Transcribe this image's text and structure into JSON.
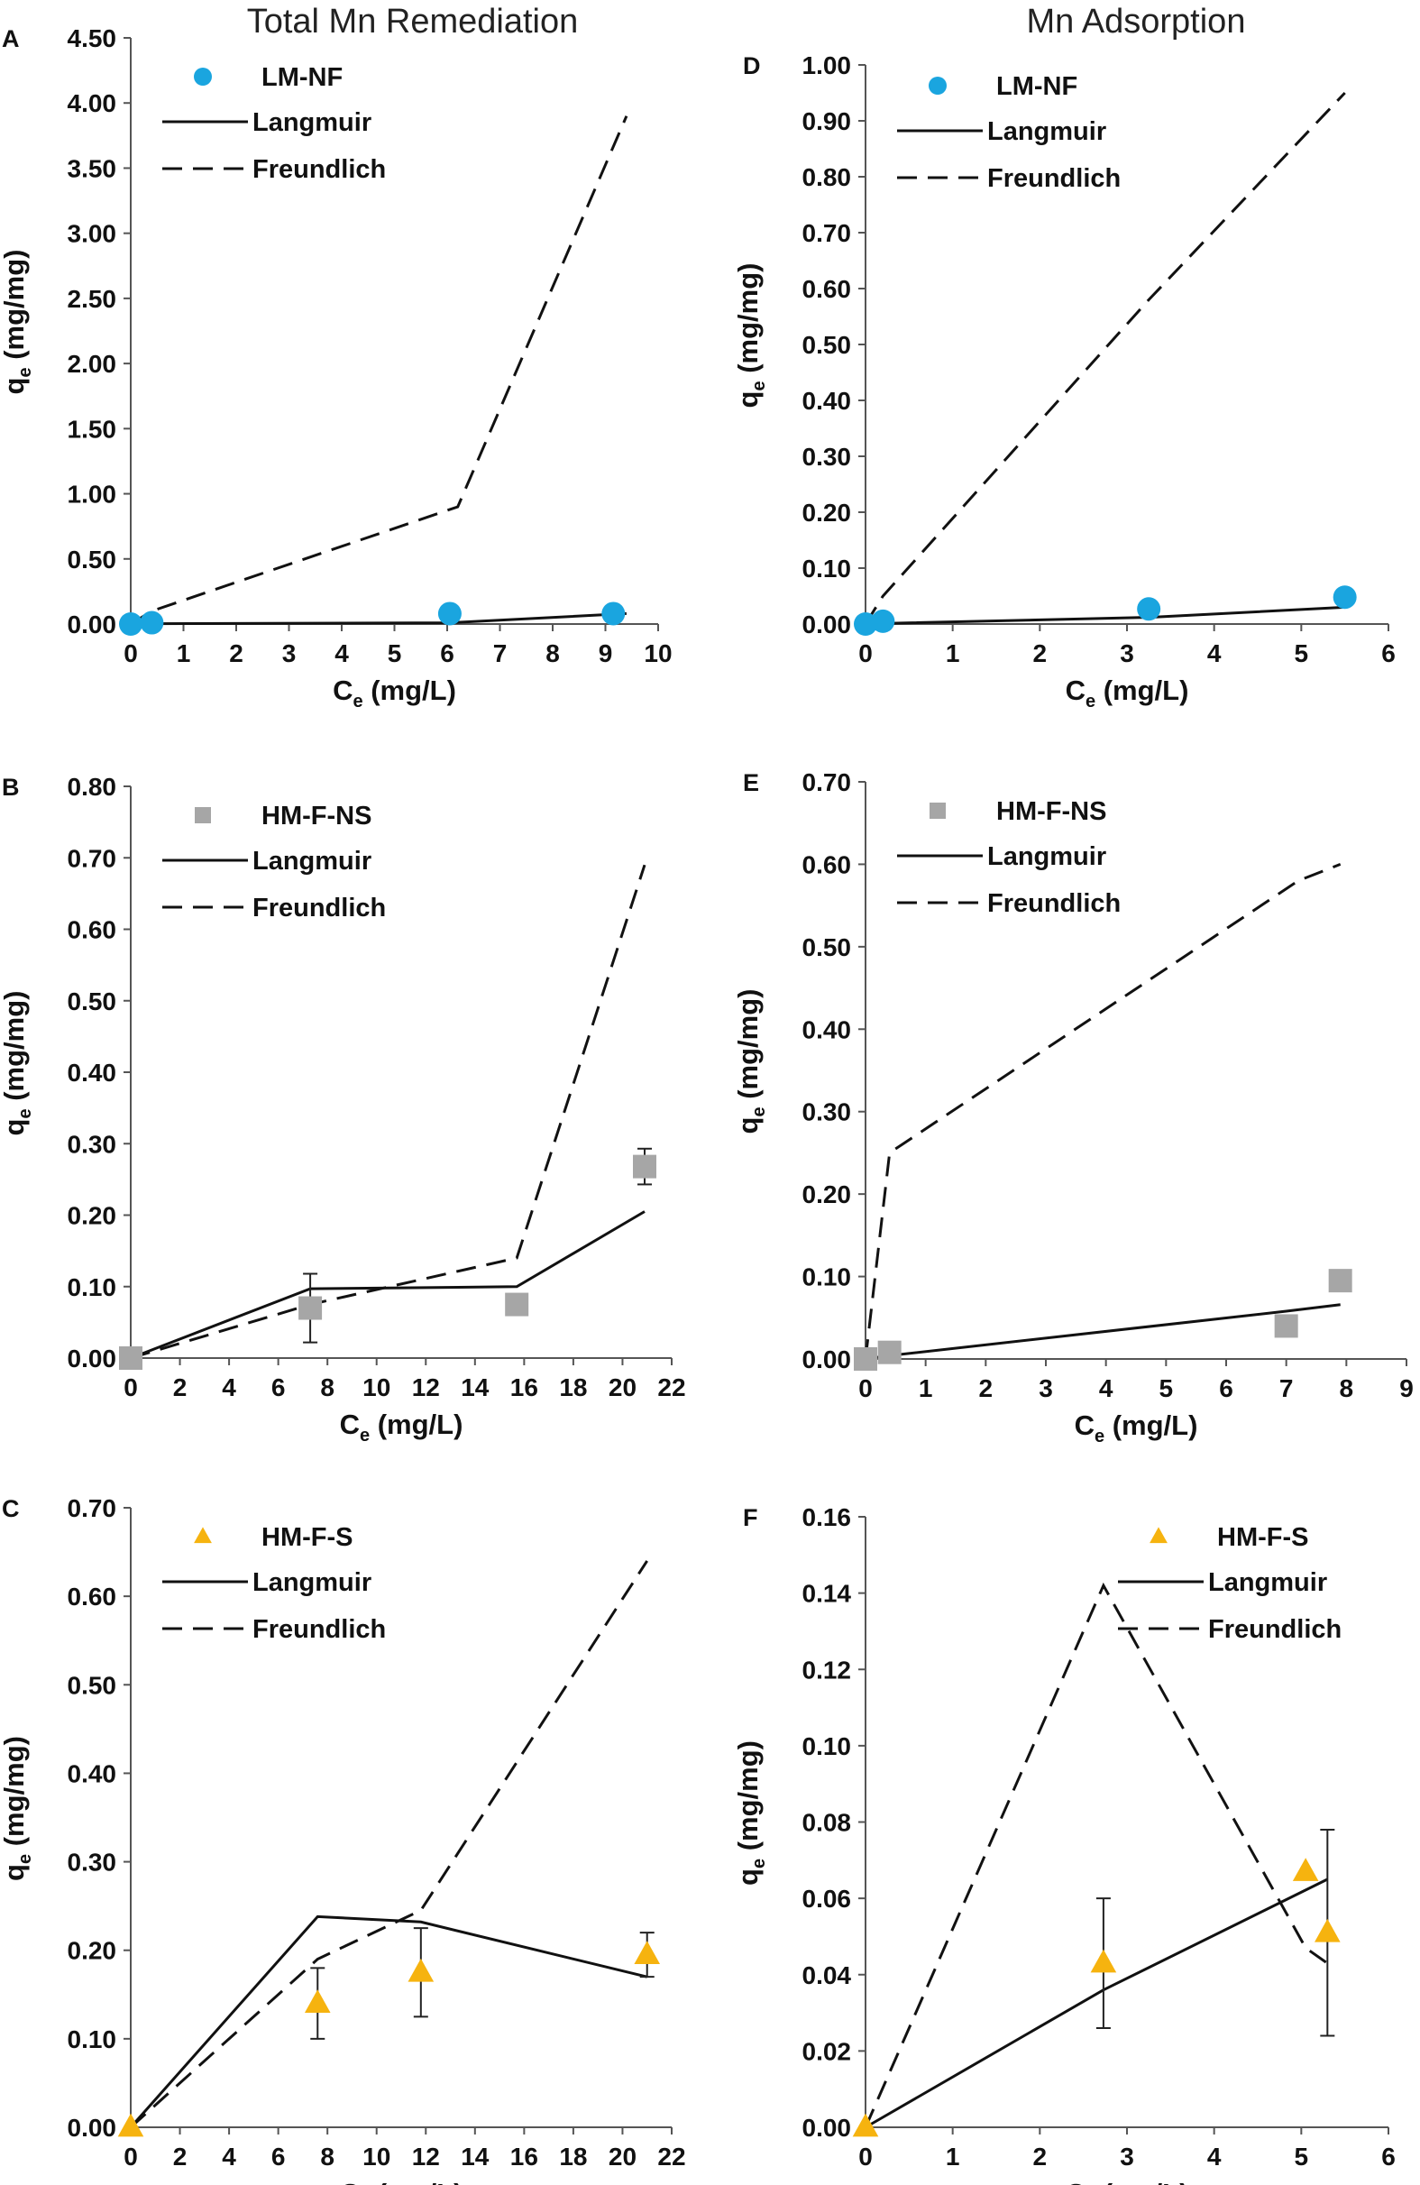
{
  "figure": {
    "panel_count": 6
  },
  "chart_data": [
    {
      "id": "A",
      "type": "scatter",
      "panel_label": "A",
      "title": "Total Mn Remediation",
      "xlabel_main": "C",
      "xlabel_sub": "e",
      "xlabel_unit": "(mg/L)",
      "ylabel_main": "q",
      "ylabel_sub": "e",
      "ylabel_unit": "(mg/mg)",
      "xlim": [
        0,
        10
      ],
      "xstep": 1,
      "xdec": 0,
      "ylim": [
        0,
        4.5
      ],
      "ystep": 0.5,
      "ydec": 2,
      "marker": "circle",
      "marker_color": "#1aa5df",
      "legend": {
        "position": "top-left",
        "data": "LM-NF",
        "langmuir": "Langmuir",
        "freundlich": "Freundlich"
      },
      "points": [
        {
          "x": 0,
          "y": 0.0
        },
        {
          "x": 0.4,
          "y": 0.01
        },
        {
          "x": 6.05,
          "y": 0.08
        },
        {
          "x": 9.15,
          "y": 0.08
        }
      ],
      "langmuir": [
        {
          "x": 0,
          "y": 0
        },
        {
          "x": 0.4,
          "y": 0.003
        },
        {
          "x": 6.05,
          "y": 0.01
        },
        {
          "x": 9.4,
          "y": 0.08
        }
      ],
      "freundlich": [
        {
          "x": 0,
          "y": 0
        },
        {
          "x": 0.4,
          "y": 0.1
        },
        {
          "x": 6.2,
          "y": 0.9
        },
        {
          "x": 9.4,
          "y": 3.9
        }
      ]
    },
    {
      "id": "B",
      "type": "scatter",
      "panel_label": "B",
      "title": "",
      "xlabel_main": "C",
      "xlabel_sub": "e",
      "xlabel_unit": "(mg/L)",
      "ylabel_main": "q",
      "ylabel_sub": "e",
      "ylabel_unit": "(mg/mg)",
      "xlim": [
        0,
        22
      ],
      "xstep": 2,
      "xdec": 0,
      "ylim": [
        0,
        0.8
      ],
      "ystep": 0.1,
      "ydec": 2,
      "marker": "square",
      "marker_color": "#a6a6a6",
      "legend": {
        "position": "top-left",
        "data": "HM-F-NS",
        "langmuir": "Langmuir",
        "freundlich": "Freundlich"
      },
      "points": [
        {
          "x": 0,
          "y": 0.0
        },
        {
          "x": 7.3,
          "y": 0.07,
          "err": 0.048
        },
        {
          "x": 15.7,
          "y": 0.075
        },
        {
          "x": 20.9,
          "y": 0.268,
          "err": 0.025
        }
      ],
      "langmuir": [
        {
          "x": 0,
          "y": 0
        },
        {
          "x": 7.3,
          "y": 0.097
        },
        {
          "x": 15.7,
          "y": 0.1
        },
        {
          "x": 20.9,
          "y": 0.205
        }
      ],
      "freundlich": [
        {
          "x": 0,
          "y": 0
        },
        {
          "x": 7.3,
          "y": 0.075
        },
        {
          "x": 15.7,
          "y": 0.14
        },
        {
          "x": 20.9,
          "y": 0.69
        }
      ]
    },
    {
      "id": "C",
      "type": "scatter",
      "panel_label": "C",
      "title": "",
      "xlabel_main": "C",
      "xlabel_sub": "e",
      "xlabel_unit": "(mg/L)",
      "ylabel_main": "q",
      "ylabel_sub": "e",
      "ylabel_unit": "(mg/mg)",
      "xlim": [
        0,
        22
      ],
      "xstep": 2,
      "xdec": 0,
      "ylim": [
        0,
        0.7
      ],
      "ystep": 0.1,
      "ydec": 2,
      "marker": "triangle",
      "marker_color": "#f6b30f",
      "legend": {
        "position": "top-left",
        "data": "HM-F-S",
        "langmuir": "Langmuir",
        "freundlich": "Freundlich"
      },
      "points": [
        {
          "x": 0,
          "y": 0.0
        },
        {
          "x": 7.6,
          "y": 0.14,
          "err": 0.04
        },
        {
          "x": 11.8,
          "y": 0.175,
          "err": 0.05
        },
        {
          "x": 21.0,
          "y": 0.195,
          "err": 0.025
        }
      ],
      "langmuir": [
        {
          "x": 0,
          "y": 0
        },
        {
          "x": 7.6,
          "y": 0.238
        },
        {
          "x": 11.8,
          "y": 0.232
        },
        {
          "x": 21.0,
          "y": 0.17
        }
      ],
      "freundlich": [
        {
          "x": 0,
          "y": 0
        },
        {
          "x": 7.6,
          "y": 0.19
        },
        {
          "x": 11.8,
          "y": 0.245
        },
        {
          "x": 21.0,
          "y": 0.64
        }
      ]
    },
    {
      "id": "D",
      "type": "scatter",
      "panel_label": "D",
      "title": "Mn Adsorption",
      "xlabel_main": "C",
      "xlabel_sub": "e",
      "xlabel_unit": "(mg/L)",
      "ylabel_main": "q",
      "ylabel_sub": "e",
      "ylabel_unit": "(mg/mg)",
      "xlim": [
        0,
        6
      ],
      "xstep": 1,
      "xdec": 0,
      "ylim": [
        0,
        1.0
      ],
      "ystep": 0.1,
      "ydec": 2,
      "marker": "circle",
      "marker_color": "#1aa5df",
      "legend": {
        "position": "top-left",
        "data": "LM-NF",
        "langmuir": "Langmuir",
        "freundlich": "Freundlich"
      },
      "points": [
        {
          "x": 0,
          "y": 0.0
        },
        {
          "x": 0.2,
          "y": 0.005
        },
        {
          "x": 3.25,
          "y": 0.027
        },
        {
          "x": 5.5,
          "y": 0.048
        }
      ],
      "langmuir": [
        {
          "x": 0,
          "y": 0
        },
        {
          "x": 0.2,
          "y": 0.001
        },
        {
          "x": 3.25,
          "y": 0.012
        },
        {
          "x": 5.5,
          "y": 0.03
        }
      ],
      "freundlich": [
        {
          "x": 0,
          "y": 0
        },
        {
          "x": 0.2,
          "y": 0.05
        },
        {
          "x": 3.25,
          "y": 0.58
        },
        {
          "x": 5.5,
          "y": 0.95
        }
      ]
    },
    {
      "id": "E",
      "type": "scatter",
      "panel_label": "E",
      "title": "",
      "xlabel_main": "C",
      "xlabel_sub": "e",
      "xlabel_unit": "(mg/L)",
      "ylabel_main": "q",
      "ylabel_sub": "e",
      "ylabel_unit": "(mg/mg)",
      "xlim": [
        0,
        9
      ],
      "xstep": 1,
      "xdec": 0,
      "ylim": [
        0,
        0.7
      ],
      "ystep": 0.1,
      "ydec": 2,
      "marker": "square",
      "marker_color": "#a6a6a6",
      "legend": {
        "position": "top-left",
        "data": "HM-F-NS",
        "langmuir": "Langmuir",
        "freundlich": "Freundlich"
      },
      "points": [
        {
          "x": 0,
          "y": 0.0
        },
        {
          "x": 0.4,
          "y": 0.008
        },
        {
          "x": 7.0,
          "y": 0.04
        },
        {
          "x": 7.9,
          "y": 0.095
        }
      ],
      "langmuir": [
        {
          "x": 0,
          "y": 0
        },
        {
          "x": 0.4,
          "y": 0.004
        },
        {
          "x": 7.0,
          "y": 0.058
        },
        {
          "x": 7.9,
          "y": 0.066
        }
      ],
      "freundlich": [
        {
          "x": 0,
          "y": 0
        },
        {
          "x": 0.4,
          "y": 0.25
        },
        {
          "x": 7.2,
          "y": 0.58
        },
        {
          "x": 7.9,
          "y": 0.6
        }
      ]
    },
    {
      "id": "F",
      "type": "scatter",
      "panel_label": "F",
      "title": "",
      "xlabel_main": "C",
      "xlabel_sub": "e",
      "xlabel_unit": "(mg/L)",
      "ylabel_main": "q",
      "ylabel_sub": "e",
      "ylabel_unit": "(mg/mg)",
      "xlim": [
        0,
        6
      ],
      "xstep": 1,
      "xdec": 0,
      "ylim": [
        0,
        0.16
      ],
      "ystep": 0.02,
      "ydec": 2,
      "marker": "triangle",
      "marker_color": "#f6b30f",
      "legend": {
        "position": "top-right",
        "data": "HM-F-S",
        "langmuir": "Langmuir",
        "freundlich": "Freundlich"
      },
      "points": [
        {
          "x": 0,
          "y": 0.0
        },
        {
          "x": 2.73,
          "y": 0.043,
          "err": 0.017
        },
        {
          "x": 5.05,
          "y": 0.067
        },
        {
          "x": 5.3,
          "y": 0.051,
          "err": 0.027
        }
      ],
      "langmuir": [
        {
          "x": 0,
          "y": 0
        },
        {
          "x": 2.73,
          "y": 0.036
        },
        {
          "x": 5.3,
          "y": 0.065
        }
      ],
      "freundlich": [
        {
          "x": 0,
          "y": 0
        },
        {
          "x": 2.73,
          "y": 0.142
        },
        {
          "x": 5.05,
          "y": 0.047
        },
        {
          "x": 5.3,
          "y": 0.043
        }
      ]
    }
  ]
}
